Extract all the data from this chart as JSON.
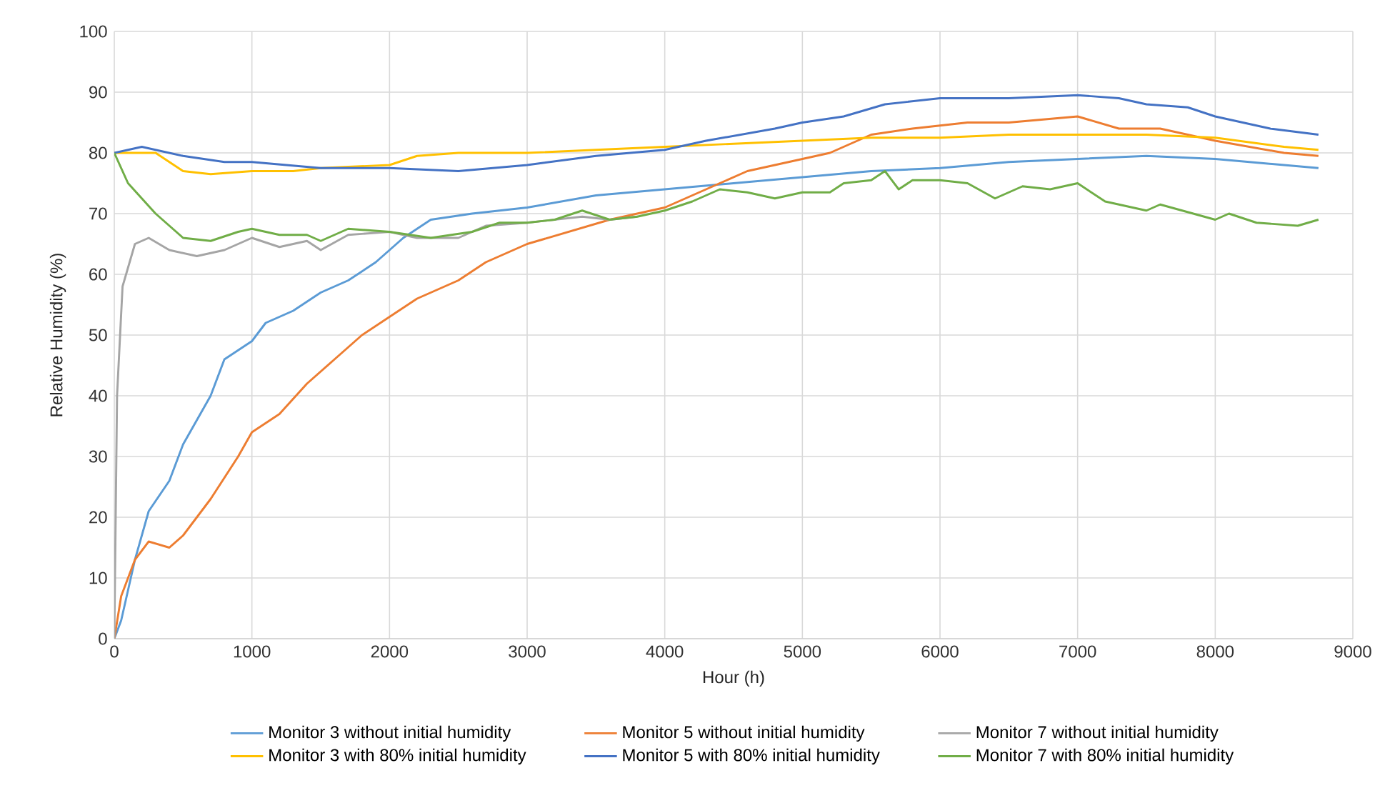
{
  "chart_data": {
    "type": "line",
    "xlabel": "Hour (h)",
    "ylabel": "Relative Humidity (%)",
    "xlim": [
      0,
      9000
    ],
    "ylim": [
      0,
      100
    ],
    "xticks": [
      0,
      1000,
      2000,
      3000,
      4000,
      5000,
      6000,
      7000,
      8000,
      9000
    ],
    "yticks": [
      0,
      10,
      20,
      30,
      40,
      50,
      60,
      70,
      80,
      90,
      100
    ],
    "grid": true,
    "legend": "bottom",
    "marker": "none",
    "line_style": "solid",
    "series": [
      {
        "name": "Monitor 3 without initial humidity",
        "color": "#5b9bd5",
        "x": [
          0,
          50,
          150,
          250,
          400,
          500,
          700,
          800,
          1000,
          1100,
          1300,
          1500,
          1700,
          1900,
          2100,
          2300,
          2600,
          3000,
          3500,
          4000,
          4500,
          5000,
          5500,
          6000,
          6500,
          7000,
          7500,
          8000,
          8500,
          8750
        ],
        "values": [
          0,
          3,
          13,
          21,
          26,
          32,
          40,
          46,
          49,
          52,
          54,
          57,
          59,
          62,
          66,
          69,
          70,
          71,
          73,
          74,
          75,
          76,
          77,
          77.5,
          78.5,
          79,
          79.5,
          79,
          78,
          77.5
        ]
      },
      {
        "name": "Monitor 5 without initial humidity",
        "color": "#ed7d31",
        "x": [
          0,
          50,
          150,
          250,
          400,
          500,
          700,
          900,
          1000,
          1200,
          1400,
          1600,
          1800,
          2000,
          2200,
          2500,
          2700,
          3000,
          3300,
          3600,
          4000,
          4300,
          4600,
          5000,
          5200,
          5500,
          5800,
          6200,
          6500,
          7000,
          7300,
          7600,
          8000,
          8500,
          8750
        ],
        "values": [
          0,
          7,
          13,
          16,
          15,
          17,
          23,
          30,
          34,
          37,
          42,
          46,
          50,
          53,
          56,
          59,
          62,
          65,
          67,
          69,
          71,
          74,
          77,
          79,
          80,
          83,
          84,
          85,
          85,
          86,
          84,
          84,
          82,
          80,
          79.5
        ]
      },
      {
        "name": "Monitor 7 without initial humidity",
        "color": "#a5a5a5",
        "x": [
          0,
          20,
          60,
          150,
          250,
          400,
          600,
          800,
          1000,
          1200,
          1400,
          1500,
          1700,
          2000,
          2200,
          2500,
          2700,
          3000,
          3400,
          3600,
          3800
        ],
        "values": [
          0,
          40,
          58,
          65,
          66,
          64,
          63,
          64,
          66,
          64.5,
          65.5,
          64,
          66.5,
          67,
          66,
          66,
          68,
          68.5,
          69.5,
          69,
          69.5
        ]
      },
      {
        "name": "Monitor 3 with 80% initial humidity",
        "color": "#ffc000",
        "x": [
          0,
          300,
          500,
          700,
          1000,
          1300,
          1500,
          2000,
          2200,
          2500,
          3000,
          3500,
          4000,
          4500,
          5000,
          5500,
          6000,
          6500,
          7000,
          7500,
          8000,
          8500,
          8750
        ],
        "values": [
          80,
          80,
          77,
          76.5,
          77,
          77,
          77.5,
          78,
          79.5,
          80,
          80,
          80.5,
          81,
          81.5,
          82,
          82.5,
          82.5,
          83,
          83,
          83,
          82.5,
          81,
          80.5
        ]
      },
      {
        "name": "Monitor 5 with 80% initial humidity",
        "color": "#4472c4",
        "x": [
          0,
          200,
          500,
          800,
          1000,
          1500,
          2000,
          2500,
          3000,
          3500,
          4000,
          4300,
          4800,
          5000,
          5300,
          5600,
          6000,
          6500,
          7000,
          7300,
          7500,
          7800,
          8000,
          8400,
          8750
        ],
        "values": [
          80,
          81,
          79.5,
          78.5,
          78.5,
          77.5,
          77.5,
          77,
          78,
          79.5,
          80.5,
          82,
          84,
          85,
          86,
          88,
          89,
          89,
          89.5,
          89,
          88,
          87.5,
          86,
          84,
          83
        ]
      },
      {
        "name": "Monitor 7 with 80% initial humidity",
        "color": "#70ad47",
        "x": [
          0,
          100,
          300,
          500,
          700,
          900,
          1000,
          1200,
          1400,
          1500,
          1700,
          2000,
          2300,
          2600,
          2800,
          3000,
          3200,
          3400,
          3600,
          3800,
          4000,
          4200,
          4400,
          4600,
          4800,
          5000,
          5200,
          5300,
          5500,
          5600,
          5700,
          5800,
          6000,
          6200,
          6400,
          6600,
          6800,
          7000,
          7200,
          7500,
          7600,
          8000,
          8100,
          8300,
          8600,
          8750
        ],
        "values": [
          80,
          75,
          70,
          66,
          65.5,
          67,
          67.5,
          66.5,
          66.5,
          65.5,
          67.5,
          67,
          66,
          67,
          68.5,
          68.5,
          69,
          70.5,
          69,
          69.5,
          70.5,
          72,
          74,
          73.5,
          72.5,
          73.5,
          73.5,
          75,
          75.5,
          77,
          74,
          75.5,
          75.5,
          75,
          72.5,
          74.5,
          74,
          75,
          72,
          70.5,
          71.5,
          69,
          70,
          68.5,
          68,
          69
        ]
      }
    ]
  }
}
